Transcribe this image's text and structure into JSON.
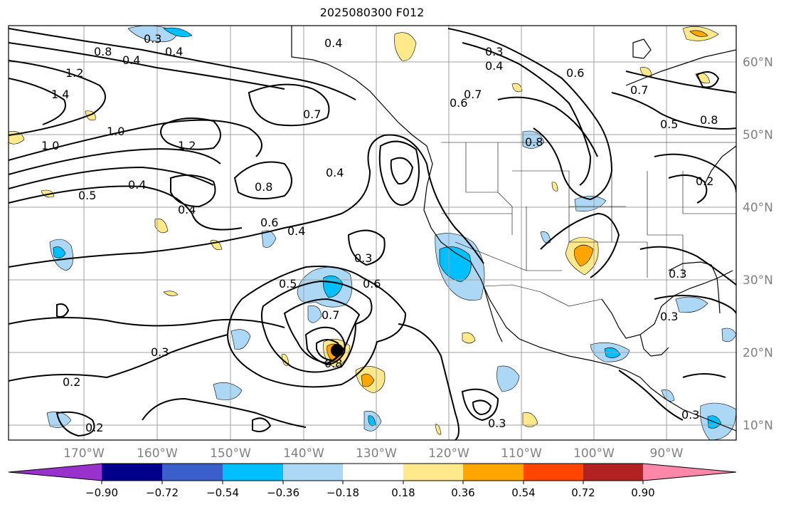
{
  "title": "2025080300 F012",
  "map": {
    "lon_labels": [
      "170°W",
      "160°W",
      "150°W",
      "140°W",
      "130°W",
      "120°W",
      "110°W",
      "100°W",
      "90°W"
    ],
    "lat_labels": [
      "60°N",
      "50°N",
      "40°N",
      "30°N",
      "20°N",
      "10°N"
    ],
    "contour_labels": [
      "0.3",
      "0.4",
      "0.8",
      "0.4",
      "1.2",
      "1.4",
      "1.0",
      "1.0",
      "1.2",
      "0.5",
      "0.4",
      "0.4",
      "0.8",
      "0.6",
      "0.4",
      "0.7",
      "0.4",
      "0.4",
      "0.3",
      "0.4",
      "0.6",
      "0.7",
      "0.6",
      "0.8",
      "0.7",
      "0.8",
      "0.5",
      "0.2",
      "0.3",
      "0.5",
      "0.6",
      "0.7",
      "0.8",
      "0.3",
      "0.2",
      "0.2",
      "0.3",
      "0.3",
      "0.3",
      "0.3"
    ],
    "marker": "storm-center"
  },
  "colorbar": {
    "tick_labels": [
      "−0.90",
      "−0.72",
      "−0.54",
      "−0.36",
      "−0.18",
      "0.18",
      "0.36",
      "0.54",
      "0.72",
      "0.90"
    ],
    "colors": [
      "#9932cc",
      "#00008b",
      "#3a5fcd",
      "#00bfff",
      "#add8f5",
      "#ffffff",
      "#ffe98a",
      "#ffa500",
      "#ff4500",
      "#b22222",
      "#ff88aa"
    ]
  }
}
